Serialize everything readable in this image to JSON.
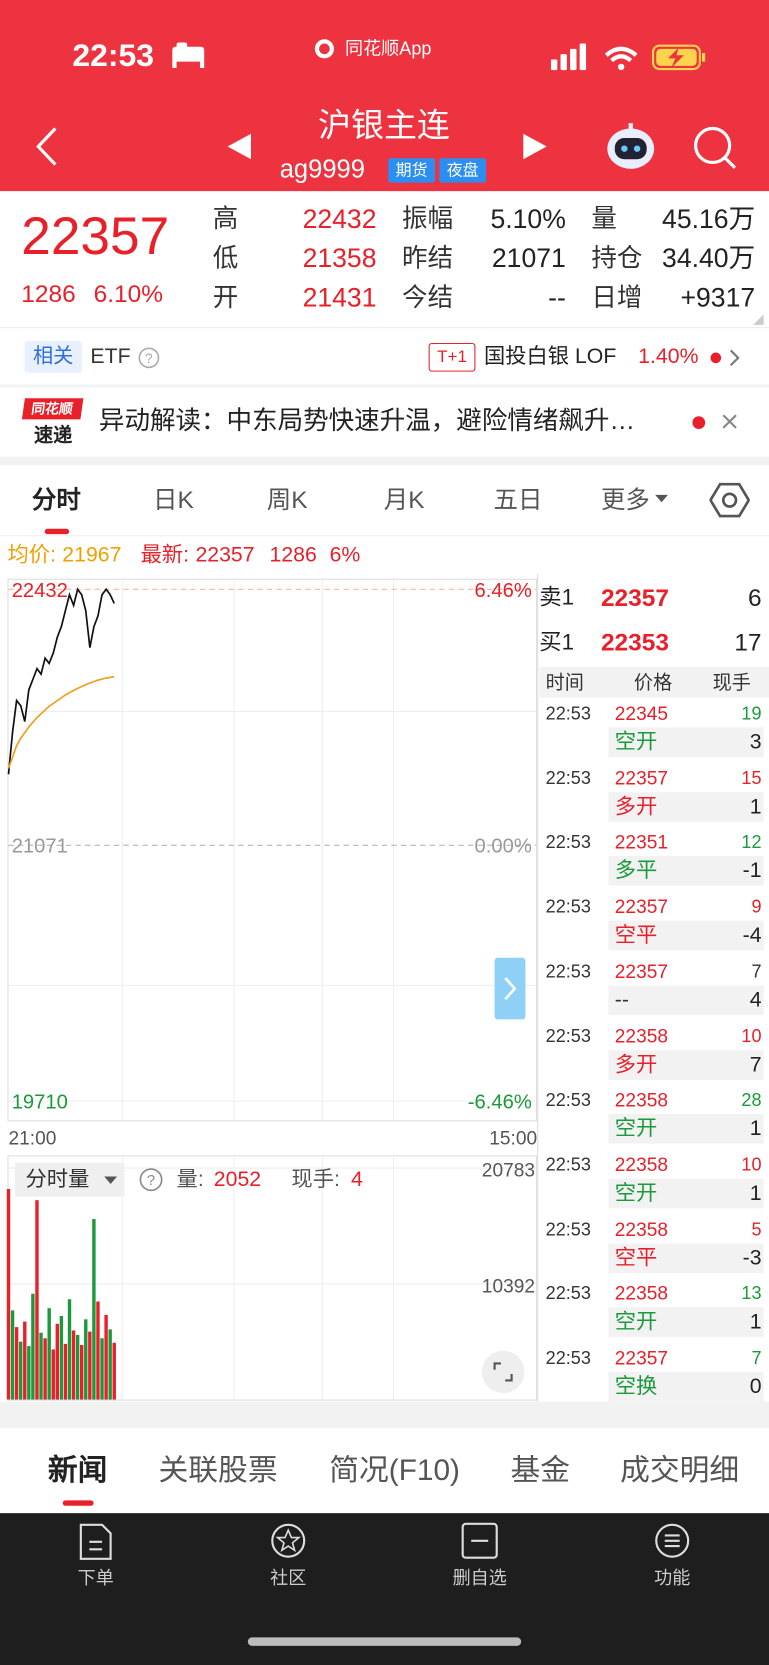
{
  "status": {
    "time": "22:53",
    "app": "同花顺App"
  },
  "header": {
    "title": "沪银主连",
    "code": "ag9999",
    "tags": [
      "期货",
      "夜盘"
    ]
  },
  "quote": {
    "price": "22357",
    "change": "1286",
    "pct": "6.10%",
    "stats": [
      {
        "label": "高",
        "value": "22432"
      },
      {
        "label": "振幅",
        "value": "5.10%"
      },
      {
        "label": "量",
        "value": "45.16万"
      },
      {
        "label": "低",
        "value": "21358"
      },
      {
        "label": "昨结",
        "value": "21071"
      },
      {
        "label": "持仓",
        "value": "34.40万"
      },
      {
        "label": "开",
        "value": "21431"
      },
      {
        "label": "今结",
        "value": "--"
      },
      {
        "label": "日增",
        "value": "+9317"
      }
    ]
  },
  "related": {
    "tag": "相关",
    "etf": "ETF",
    "badge": "T+1",
    "name": "国投白银 LOF",
    "pct": "1.40%"
  },
  "news": {
    "logo": [
      "同花顺",
      "速递"
    ],
    "text": "异动解读：中东局势快速升温，避险情绪飙升…"
  },
  "tabs": [
    "分时",
    "日K",
    "周K",
    "月K",
    "五日",
    "更多"
  ],
  "info": {
    "avg_label": "均价:",
    "avg": "21967",
    "latest_label": "最新:",
    "latest": "22357",
    "change": "1286",
    "pct": "6%"
  },
  "chart_data": {
    "type": "line",
    "x": [
      0,
      1,
      2,
      3,
      4,
      5,
      6,
      7,
      8,
      9,
      10,
      11,
      12,
      13,
      14,
      15,
      16,
      17,
      18,
      19,
      20,
      21,
      22,
      23,
      24,
      25,
      26
    ],
    "xlim": [
      0,
      130
    ],
    "xticks": [
      {
        "value": 0,
        "label": "21:00"
      },
      {
        "value": 130,
        "label": "15:00"
      }
    ],
    "ylim": [
      19710,
      22432
    ],
    "yticks": [
      19710,
      21071,
      22432
    ],
    "y2lim": [
      -6.46,
      6.46
    ],
    "y2ticks": [
      {
        "value": -6.46,
        "label": "-6.46%"
      },
      {
        "value": 0,
        "label": "0.00%"
      },
      {
        "value": 6.46,
        "label": "6.46%"
      }
    ],
    "series": [
      {
        "color": "#111111",
        "values": [
          21448,
          21672,
          21841,
          21813,
          21729,
          21897,
          21953,
          22010,
          21981,
          22066,
          22038,
          22094,
          22178,
          22234,
          22319,
          22403,
          22347,
          22432,
          22403,
          22319,
          22122,
          22234,
          22290,
          22403,
          22432,
          22403,
          22357
        ]
      },
      {
        "color": "#f0a020",
        "values": [
          21480,
          21540,
          21600,
          21640,
          21670,
          21700,
          21725,
          21750,
          21770,
          21790,
          21810,
          21825,
          21840,
          21855,
          21870,
          21882,
          21894,
          21905,
          21915,
          21925,
          21934,
          21942,
          21949,
          21955,
          21960,
          21964,
          21967
        ]
      }
    ],
    "volume": {
      "ylim": [
        0,
        20783
      ],
      "yticks": [
        10392,
        20783
      ],
      "values": [
        18900,
        8000,
        6500,
        5200,
        7000,
        4800,
        9500,
        17900,
        6000,
        5500,
        8200,
        4500,
        6800,
        7500,
        5000,
        9000,
        6200,
        5800,
        4900,
        7200,
        6100,
        16200,
        8800,
        5500,
        7600,
        6300,
        5100
      ],
      "colors": [
        "#e8202a",
        "#1a9a3a",
        "#e8202a",
        "#1a9a3a",
        "#e8202a",
        "#1a9a3a",
        "#1a9a3a",
        "#e8202a",
        "#1a9a3a",
        "#e8202a",
        "#1a9a3a",
        "#e8202a",
        "#e8202a",
        "#1a9a3a",
        "#e8202a",
        "#1a9a3a",
        "#e8202a",
        "#1a9a3a",
        "#e8202a",
        "#1a9a3a",
        "#e8202a",
        "#1a9a3a",
        "#e8202a",
        "#1a9a3a",
        "#e8202a",
        "#1a9a3a",
        "#e8202a"
      ]
    }
  },
  "volume_info": {
    "selector": "分时量",
    "vol_label": "量:",
    "vol": "2052",
    "hand_label": "现手:",
    "hand": "4"
  },
  "order_book": [
    {
      "side": "卖1",
      "price": "22357",
      "qty": "6"
    },
    {
      "side": "买1",
      "price": "22353",
      "qty": "17"
    }
  ],
  "trades_header": [
    "时间",
    "价格",
    "现手"
  ],
  "trades": [
    {
      "time": "22:53",
      "price": "22345",
      "qty": "19",
      "qty_color": "#1a9a3a",
      "type": "空开",
      "type_color": "#1a9a3a",
      "hand": "3"
    },
    {
      "time": "22:53",
      "price": "22357",
      "qty": "15",
      "qty_color": "#e8202a",
      "type": "多开",
      "type_color": "#e8202a",
      "hand": "1"
    },
    {
      "time": "22:53",
      "price": "22351",
      "qty": "12",
      "qty_color": "#1a9a3a",
      "type": "多平",
      "type_color": "#1a9a3a",
      "hand": "-1"
    },
    {
      "time": "22:53",
      "price": "22357",
      "qty": "9",
      "qty_color": "#e8202a",
      "type": "空平",
      "type_color": "#e8202a",
      "hand": "-4"
    },
    {
      "time": "22:53",
      "price": "22357",
      "qty": "7",
      "qty_color": "#333333",
      "type": "--",
      "type_color": "#333333",
      "hand": "4"
    },
    {
      "time": "22:53",
      "price": "22358",
      "qty": "10",
      "qty_color": "#e8202a",
      "type": "多开",
      "type_color": "#e8202a",
      "hand": "7"
    },
    {
      "time": "22:53",
      "price": "22358",
      "qty": "28",
      "qty_color": "#1a9a3a",
      "type": "空开",
      "type_color": "#1a9a3a",
      "hand": "1"
    },
    {
      "time": "22:53",
      "price": "22358",
      "qty": "10",
      "qty_color": "#e8202a",
      "type": "空开",
      "type_color": "#1a9a3a",
      "hand": "1"
    },
    {
      "time": "22:53",
      "price": "22358",
      "qty": "5",
      "qty_color": "#e8202a",
      "type": "空平",
      "type_color": "#e8202a",
      "hand": "-3"
    },
    {
      "time": "22:53",
      "price": "22358",
      "qty": "13",
      "qty_color": "#1a9a3a",
      "type": "空开",
      "type_color": "#1a9a3a",
      "hand": "1"
    },
    {
      "time": "22:53",
      "price": "22357",
      "qty": "7",
      "qty_color": "#1a9a3a",
      "type": "空换",
      "type_color": "#1a9a3a",
      "hand": "0"
    }
  ],
  "bottom_tabs": [
    "新闻",
    "关联股票",
    "简况(F10)",
    "基金",
    "成交明细"
  ],
  "nav": [
    "下单",
    "社区",
    "删自选",
    "功能"
  ]
}
